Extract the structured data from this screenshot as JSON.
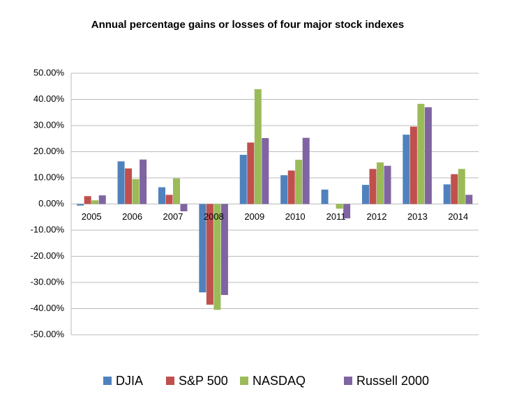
{
  "chart_data": {
    "type": "bar",
    "title": "Annual percentage gains or losses of four major stock indexes",
    "categories": [
      "2005",
      "2006",
      "2007",
      "2008",
      "2009",
      "2010",
      "2011",
      "2012",
      "2013",
      "2014"
    ],
    "series": [
      {
        "name": "DJIA",
        "color": "#4f81bd",
        "values": [
          -0.6,
          16.3,
          6.4,
          -33.8,
          18.8,
          11.0,
          5.5,
          7.3,
          26.5,
          7.5
        ]
      },
      {
        "name": "S&P 500",
        "color": "#c0504d",
        "values": [
          3.0,
          13.6,
          3.5,
          -38.5,
          23.5,
          12.8,
          0.0,
          13.4,
          29.6,
          11.4
        ]
      },
      {
        "name": "NASDAQ",
        "color": "#9bbb59",
        "values": [
          1.4,
          9.5,
          9.8,
          -40.5,
          43.9,
          16.9,
          -1.8,
          15.9,
          38.3,
          13.4
        ]
      },
      {
        "name": "Russell 2000",
        "color": "#8064a2",
        "values": [
          3.3,
          17.0,
          -2.8,
          -34.8,
          25.2,
          25.3,
          -5.5,
          14.6,
          37.0,
          3.5
        ]
      }
    ],
    "ylim": [
      -50,
      50
    ],
    "yticks": [
      {
        "value": -50,
        "label": "-50.00%"
      },
      {
        "value": -40,
        "label": "-40.00%"
      },
      {
        "value": -30,
        "label": "-30.00%"
      },
      {
        "value": -20,
        "label": "-20.00%"
      },
      {
        "value": -10,
        "label": "-10.00%"
      },
      {
        "value": 0,
        "label": "0.00%"
      },
      {
        "value": 10,
        "label": "10.00%"
      },
      {
        "value": 20,
        "label": "20.00%"
      },
      {
        "value": 30,
        "label": "30.00%"
      },
      {
        "value": 40,
        "label": "40.00%"
      },
      {
        "value": 50,
        "label": "50.00%"
      }
    ],
    "grid": true,
    "legend": "bottom"
  }
}
